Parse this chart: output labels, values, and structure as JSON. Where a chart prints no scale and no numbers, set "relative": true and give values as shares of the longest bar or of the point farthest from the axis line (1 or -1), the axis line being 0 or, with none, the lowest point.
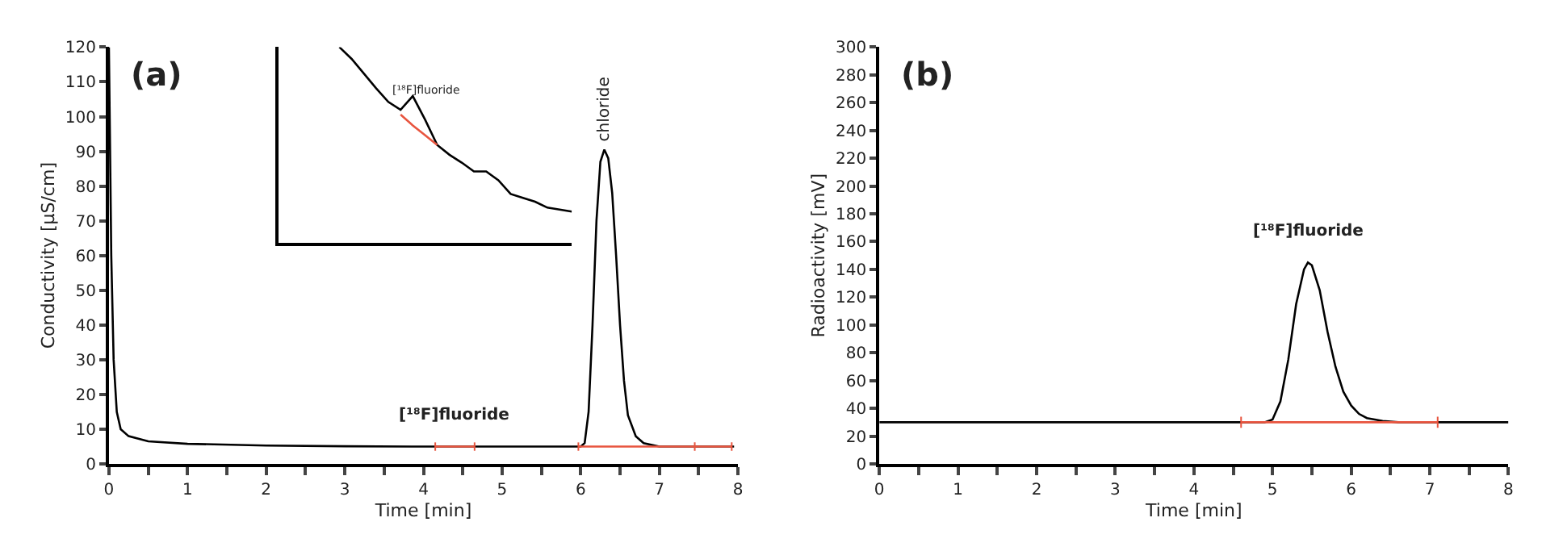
{
  "chart_data": [
    {
      "type": "line",
      "xlabel": "Time [min]",
      "ylabel": "Conductivity [µS/cm]",
      "xlim": [
        0,
        8
      ],
      "ylim": [
        0,
        120
      ],
      "xticks": [
        0,
        {
          "value": 0.5,
          "label": null
        },
        1,
        {
          "value": 1.5,
          "label": null
        },
        2,
        {
          "value": 2.5,
          "label": null
        },
        3,
        {
          "value": 3.5,
          "label": null
        },
        4,
        {
          "value": 4.5,
          "label": null
        },
        5,
        {
          "value": 5.5,
          "label": null
        },
        6,
        {
          "value": 6.5,
          "label": null
        },
        7,
        {
          "value": 7.5,
          "label": null
        },
        8
      ],
      "yticks": [
        0,
        10,
        20,
        30,
        40,
        50,
        60,
        70,
        80,
        90,
        100,
        110,
        120
      ],
      "series": [
        {
          "color": "#000000",
          "x": [
            0,
            0.03,
            0.06,
            0.1,
            0.15,
            0.25,
            0.5,
            1,
            2,
            3,
            4,
            5,
            6,
            6.05,
            6.1,
            6.15,
            6.2,
            6.25,
            6.3,
            6.35,
            6.4,
            6.45,
            6.5,
            6.55,
            6.6,
            6.7,
            6.8,
            7,
            7.5,
            7.95
          ],
          "values": [
            120,
            60,
            30,
            15,
            10,
            8,
            6.5,
            5.8,
            5.3,
            5.1,
            5,
            5,
            5,
            6,
            15,
            40,
            70,
            87,
            90.5,
            88,
            78,
            60,
            40,
            24,
            14,
            8,
            6,
            5,
            5,
            5
          ]
        },
        {
          "color": "#e8553f",
          "x": [
            4.15,
            4.65,
            5.3,
            5.97,
            7.45,
            7.92
          ],
          "values": [
            5,
            5,
            null,
            5,
            5,
            5
          ],
          "errors": [
            1.2,
            1.2,
            null,
            1.2,
            1.2,
            1.2
          ]
        }
      ],
      "annotations": [
        "(a)",
        {
          "text": "chloride",
          "x": 6.3,
          "y": 92
        },
        "[¹⁸F]fluoride"
      ]
    },
    {
      "type": "line",
      "relative": true,
      "categories": [
        null,
        null,
        null,
        null,
        null,
        null,
        null,
        null,
        null,
        null,
        null,
        null,
        null,
        null,
        null,
        null,
        null,
        null,
        null,
        null,
        null,
        null,
        null,
        null,
        null
      ],
      "series": [
        {
          "color": "#000000",
          "values": [
            null,
            null,
            null,
            null,
            null,
            1.0,
            0.94,
            0.865,
            0.79,
            0.72,
            0.68,
            0.75,
            0.63,
            0.5,
            0.45,
            0.41,
            0.365,
            0.365,
            0.32,
            0.25,
            0.23,
            0.21,
            0.18,
            0.17,
            0.16
          ]
        },
        {
          "color": "#e8553f",
          "values": [
            null,
            null,
            null,
            null,
            null,
            null,
            null,
            null,
            null,
            null,
            0.655,
            0.6,
            0.55,
            0.5,
            null,
            null,
            null,
            null,
            null,
            null,
            null,
            null,
            null,
            null,
            null
          ]
        }
      ],
      "annotations": [
        "[¹⁸F]fluoride"
      ]
    },
    {
      "type": "line",
      "xlabel": "Time [min]",
      "ylabel": "Radioactivity [mV]",
      "xlim": [
        0,
        8
      ],
      "ylim": [
        0,
        300
      ],
      "xticks": [
        0,
        {
          "value": 0.5,
          "label": null
        },
        1,
        {
          "value": 1.5,
          "label": null
        },
        2,
        {
          "value": 2.5,
          "label": null
        },
        3,
        {
          "value": 3.5,
          "label": null
        },
        4,
        {
          "value": 4.5,
          "label": null
        },
        5,
        {
          "value": 5.5,
          "label": null
        },
        6,
        {
          "value": 6.5,
          "label": null
        },
        7,
        {
          "value": 7.5,
          "label": null
        },
        8
      ],
      "yticks": [
        0,
        20,
        40,
        60,
        80,
        100,
        120,
        140,
        160,
        180,
        200,
        220,
        240,
        260,
        280,
        300
      ],
      "series": [
        {
          "color": "#000000",
          "x": [
            0,
            4.9,
            5.0,
            5.1,
            5.2,
            5.3,
            5.4,
            5.45,
            5.5,
            5.6,
            5.7,
            5.8,
            5.9,
            6.0,
            6.1,
            6.2,
            6.4,
            6.6,
            8
          ],
          "values": [
            30,
            30,
            32,
            45,
            75,
            115,
            140,
            145,
            143,
            125,
            95,
            70,
            52,
            42,
            36,
            33,
            31,
            30,
            30
          ]
        },
        {
          "color": "#e8553f",
          "x": [
            4.6,
            7.1
          ],
          "values": [
            30,
            30
          ],
          "errors": [
            4,
            4
          ]
        }
      ],
      "annotations": [
        "(b)",
        "[¹⁸F]fluoride"
      ]
    }
  ]
}
